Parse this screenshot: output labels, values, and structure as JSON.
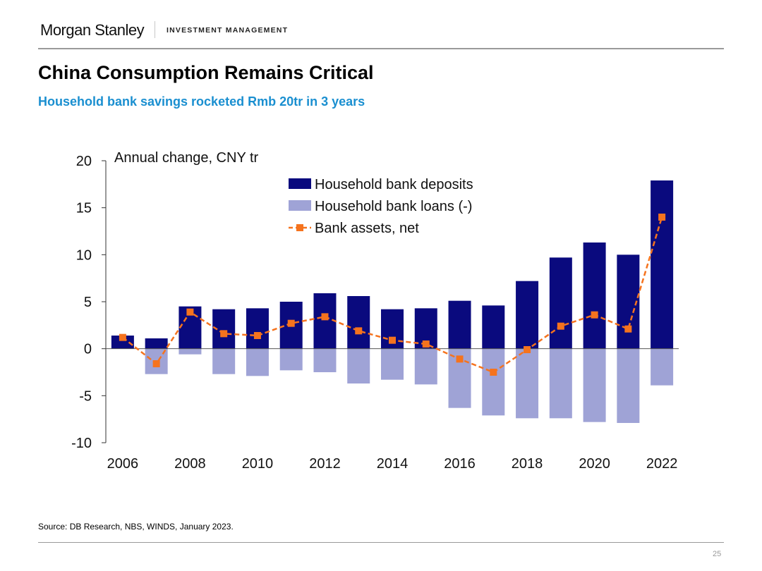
{
  "header": {
    "brand": "Morgan Stanley",
    "division": "INVESTMENT MANAGEMENT"
  },
  "slide": {
    "title": "China Consumption Remains Critical",
    "subtitle": "Household bank savings rocketed Rmb 20tr in 3 years",
    "source": "Source: DB Research, NBS, WINDS, January 2023.",
    "page_number": "25"
  },
  "colors": {
    "deposits": "#0a0a7e",
    "loans": "#9fa3d6",
    "net": "#f5731e",
    "subtitle": "#1a8fd0"
  },
  "chart_data": {
    "type": "bar",
    "title": "",
    "ylabel": "Annual change, CNY tr",
    "xlabel": "",
    "ylim": [
      -10,
      20
    ],
    "yticks": [
      20,
      15,
      10,
      5,
      0,
      -5,
      -10
    ],
    "categories": [
      "2006",
      "2007",
      "2008",
      "2009",
      "2010",
      "2011",
      "2012",
      "2013",
      "2014",
      "2015",
      "2016",
      "2017",
      "2018",
      "2019",
      "2020",
      "2021",
      "2022"
    ],
    "xtick_labels": [
      "2006",
      "2008",
      "2010",
      "2012",
      "2014",
      "2016",
      "2018",
      "2020",
      "2022"
    ],
    "legend_position": "top-right",
    "series": [
      {
        "name": "Household bank deposits",
        "kind": "bar",
        "values": [
          1.4,
          1.1,
          4.5,
          4.2,
          4.3,
          5.0,
          5.9,
          5.6,
          4.2,
          4.3,
          5.1,
          4.6,
          7.2,
          9.7,
          11.3,
          10.0,
          17.9
        ]
      },
      {
        "name": "Household bank loans (-)",
        "kind": "bar",
        "values": [
          0.0,
          -2.7,
          -0.6,
          -2.7,
          -2.9,
          -2.3,
          -2.5,
          -3.7,
          -3.3,
          -3.8,
          -6.3,
          -7.1,
          -7.4,
          -7.4,
          -7.8,
          -7.9,
          -3.9
        ]
      },
      {
        "name": "Bank assets, net",
        "kind": "line",
        "values": [
          1.2,
          -1.6,
          3.9,
          1.6,
          1.4,
          2.7,
          3.4,
          1.9,
          0.9,
          0.5,
          -1.1,
          -2.5,
          -0.1,
          2.4,
          3.6,
          2.1,
          14.0
        ]
      }
    ]
  }
}
